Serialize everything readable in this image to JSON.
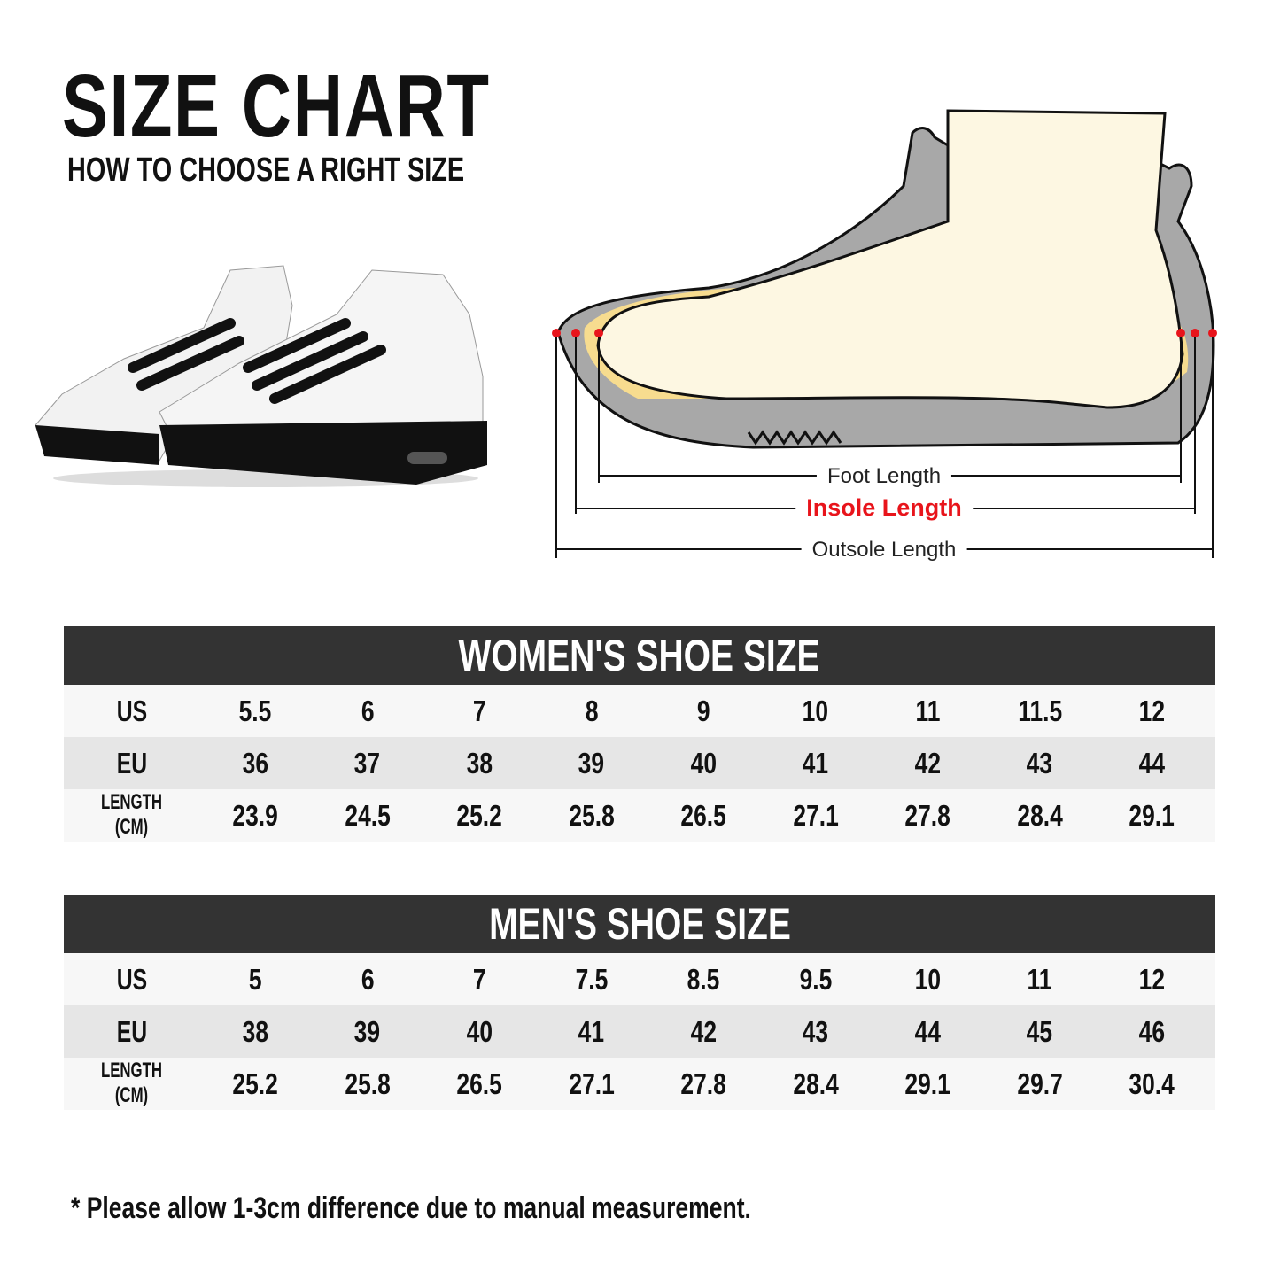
{
  "header": {
    "title": "SIZE CHART",
    "subtitle": "HOW TO CHOOSE A RIGHT SIZE"
  },
  "diagram": {
    "foot_length": "Foot Length",
    "insole_length": "Insole Length",
    "outsole_length": "Outsole Length",
    "highlight_color": "#e8141b"
  },
  "women": {
    "title": "WOMEN'S SHOE SIZE",
    "rows": [
      {
        "label": "US",
        "values": [
          "5.5",
          "6",
          "7",
          "8",
          "9",
          "10",
          "11",
          "11.5",
          "12"
        ]
      },
      {
        "label": "EU",
        "values": [
          "36",
          "37",
          "38",
          "39",
          "40",
          "41",
          "42",
          "43",
          "44"
        ]
      },
      {
        "label": "LENGTH (CM)",
        "values": [
          "23.9",
          "24.5",
          "25.2",
          "25.8",
          "26.5",
          "27.1",
          "27.8",
          "28.4",
          "29.1"
        ]
      }
    ]
  },
  "men": {
    "title": "MEN'S SHOE SIZE",
    "rows": [
      {
        "label": "US",
        "values": [
          "5",
          "6",
          "7",
          "7.5",
          "8.5",
          "9.5",
          "10",
          "11",
          "12"
        ]
      },
      {
        "label": "EU",
        "values": [
          "38",
          "39",
          "40",
          "41",
          "42",
          "43",
          "44",
          "45",
          "46"
        ]
      },
      {
        "label": "LENGTH (CM)",
        "values": [
          "25.2",
          "25.8",
          "26.5",
          "27.1",
          "27.8",
          "28.4",
          "29.1",
          "29.7",
          "30.4"
        ]
      }
    ]
  },
  "footnote": "* Please allow 1-3cm difference due to manual measurement."
}
